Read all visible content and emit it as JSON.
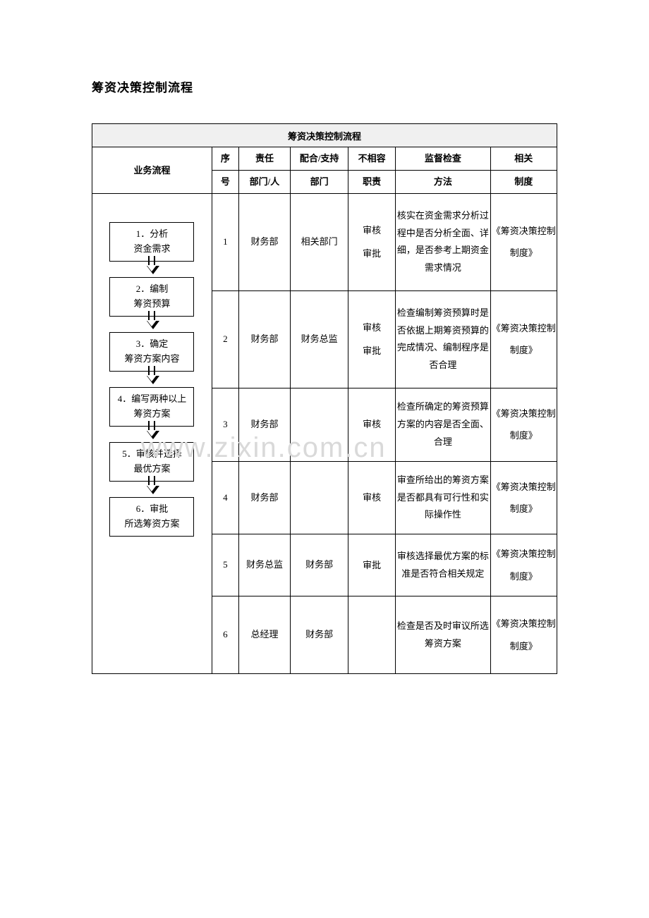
{
  "page_title": "筹资决策控制流程",
  "table_title": "筹资决策控制流程",
  "headers": {
    "flow": "业务流程",
    "seq": "序号",
    "resp": "责任部门/人",
    "support": "配合/支持部门",
    "incompat": "不相容职责",
    "supervise": "监督检查方法",
    "regime": "相关制度",
    "resp_top": "责任",
    "resp_bot": "部门/人",
    "support_top": "配合/支持",
    "support_bot": "部门",
    "incompat_top": "不相容",
    "incompat_bot": "职责",
    "supervise_top": "监督检查",
    "supervise_bot": "方法",
    "regime_top": "相关",
    "regime_bot": "制度",
    "seq_top": "序",
    "seq_bot": "号"
  },
  "flow_nodes": [
    {
      "label": "1．分析\n资金需求"
    },
    {
      "label": "2．编制\n筹资预算"
    },
    {
      "label": "3．确定\n筹资方案内容"
    },
    {
      "label": "4．编写两种以上\n筹资方案"
    },
    {
      "label": "5．审核并选择\n最优方案"
    },
    {
      "label": "6．审批\n所选筹资方案"
    }
  ],
  "rows": [
    {
      "seq": "1",
      "resp": "财务部",
      "support": "相关部门",
      "incompat": "审核\n审批",
      "supervise": "核实在资金需求分析过程中是否分析全面、详细，是否参考上期资金需求情况",
      "regime": "《筹资决策控制制度》"
    },
    {
      "seq": "2",
      "resp": "财务部",
      "support": "财务总监",
      "incompat": "审核\n审批",
      "supervise": "检查编制筹资预算时是否依据上期筹资预算的完成情况、编制程序是否合理",
      "regime": "《筹资决策控制制度》"
    },
    {
      "seq": "3",
      "resp": "财务部",
      "support": "",
      "incompat": "审核",
      "supervise": "检查所确定的筹资预算方案的内容是否全面、合理",
      "regime": "《筹资决策控制制度》"
    },
    {
      "seq": "4",
      "resp": "财务部",
      "support": "",
      "incompat": "审核",
      "supervise": "审查所给出的筹资方案是否都具有可行性和实际操作性",
      "regime": "《筹资决策控制制度》"
    },
    {
      "seq": "5",
      "resp": "财务总监",
      "support": "财务部",
      "incompat": "审批",
      "supervise": "审核选择最优方案的标准是否符合相关规定",
      "regime": "《筹资决策控制制度》"
    },
    {
      "seq": "6",
      "resp": "总经理",
      "support": "财务部",
      "incompat": "",
      "supervise": "检查是否及时审议所选筹资方案",
      "regime": "《筹资决策控制制度》"
    }
  ],
  "watermark": "www.zixin.com.cn",
  "col_widths": {
    "flow": 162,
    "seq": 36,
    "resp": 70,
    "support": 78,
    "incompat": 64,
    "supervise": 128,
    "regime": 90
  }
}
